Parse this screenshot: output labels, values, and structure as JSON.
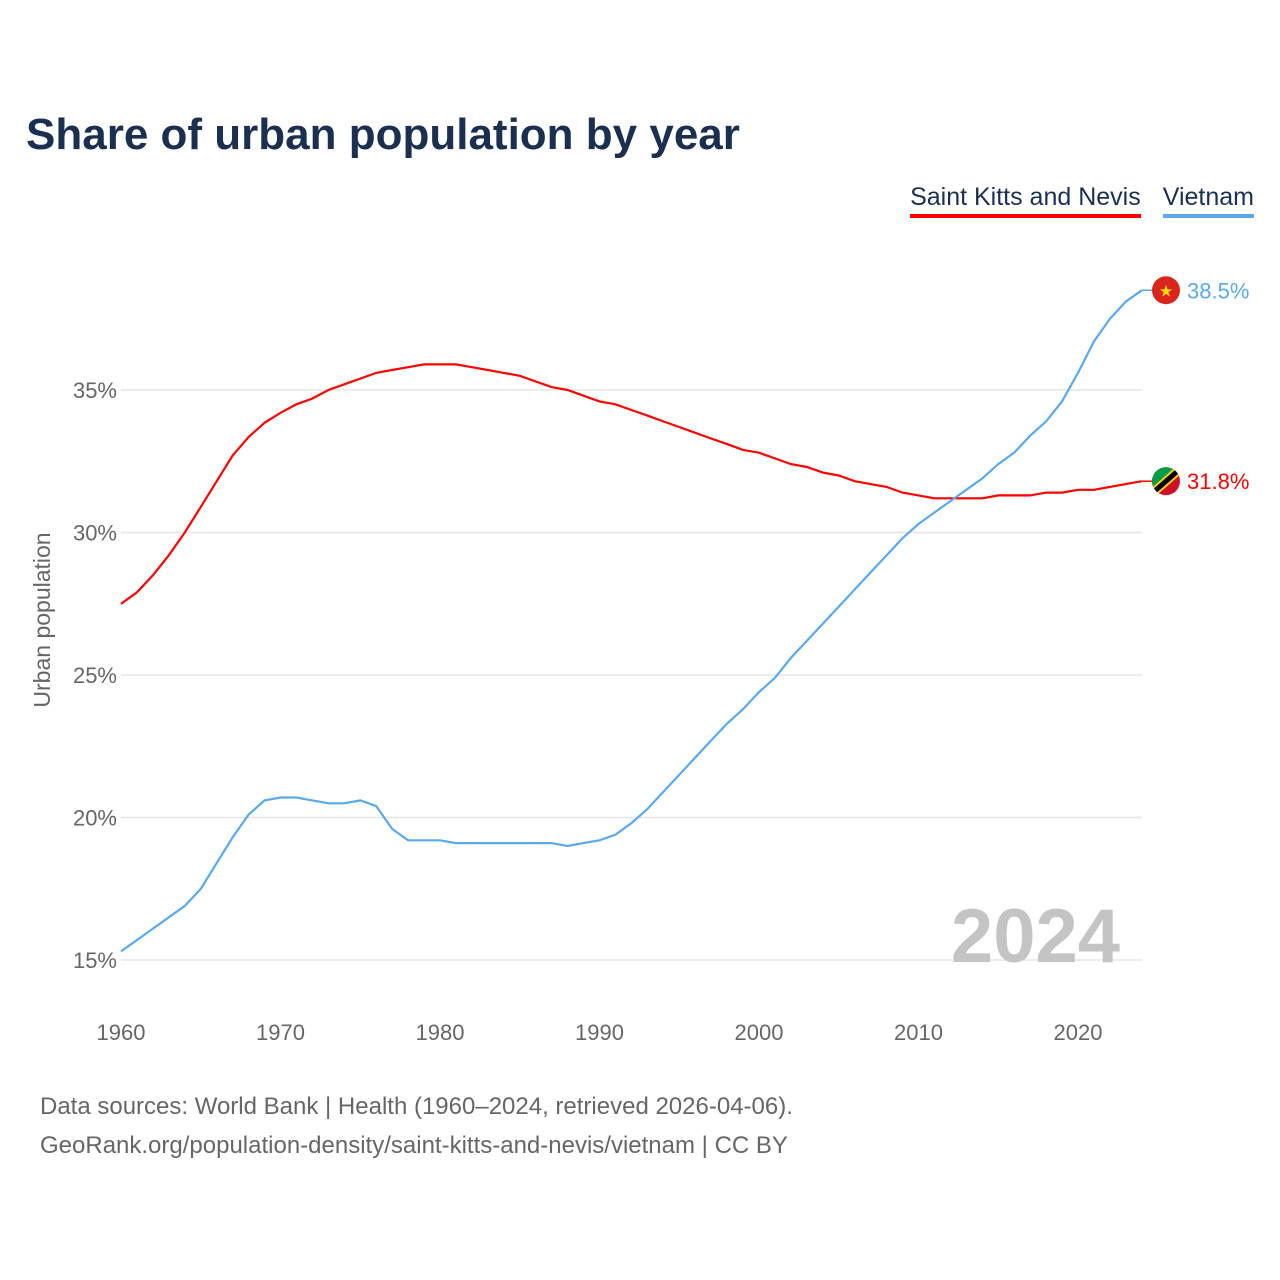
{
  "chart_data": {
    "type": "line",
    "title": "Share of urban population by year",
    "xlabel": "",
    "ylabel": "Urban population",
    "xlim": [
      1960,
      2024
    ],
    "ylim": [
      15,
      38.5
    ],
    "x_ticks": [
      "1960",
      "1970",
      "1980",
      "1990",
      "2000",
      "2010",
      "2020"
    ],
    "y_ticks": [
      "15%",
      "20%",
      "25%",
      "30%",
      "35%"
    ],
    "y_tick_values": [
      15,
      20,
      25,
      30,
      35
    ],
    "grid": true,
    "legend_position": "top-right",
    "year_watermark": "2024",
    "x": [
      1960,
      1961,
      1962,
      1963,
      1964,
      1965,
      1966,
      1967,
      1968,
      1969,
      1970,
      1971,
      1972,
      1973,
      1974,
      1975,
      1976,
      1977,
      1978,
      1979,
      1980,
      1981,
      1982,
      1983,
      1984,
      1985,
      1986,
      1987,
      1988,
      1989,
      1990,
      1991,
      1992,
      1993,
      1994,
      1995,
      1996,
      1997,
      1998,
      1999,
      2000,
      2001,
      2002,
      2003,
      2004,
      2005,
      2006,
      2007,
      2008,
      2009,
      2010,
      2011,
      2012,
      2013,
      2014,
      2015,
      2016,
      2017,
      2018,
      2019,
      2020,
      2021,
      2022,
      2023,
      2024
    ],
    "series": [
      {
        "name": "Saint Kitts and Nevis",
        "color": "#ff0000",
        "end_label": "31.8%",
        "values": [
          27.5,
          27.9,
          28.5,
          29.2,
          30.0,
          30.9,
          31.8,
          32.7,
          33.35,
          33.85,
          34.2,
          34.5,
          34.7,
          35.0,
          35.2,
          35.4,
          35.6,
          35.7,
          35.8,
          35.9,
          35.9,
          35.9,
          35.8,
          35.7,
          35.6,
          35.5,
          35.3,
          35.1,
          35.0,
          34.8,
          34.6,
          34.5,
          34.3,
          34.1,
          33.9,
          33.7,
          33.5,
          33.3,
          33.1,
          32.9,
          32.8,
          32.6,
          32.4,
          32.3,
          32.1,
          32.0,
          31.8,
          31.7,
          31.6,
          31.4,
          31.3,
          31.2,
          31.2,
          31.2,
          31.2,
          31.3,
          31.3,
          31.3,
          31.4,
          31.4,
          31.5,
          31.5,
          31.6,
          31.7,
          31.8
        ]
      },
      {
        "name": "Vietnam",
        "color": "#5ba8ee",
        "end_label": "38.5%",
        "values": [
          15.3,
          15.7,
          16.1,
          16.5,
          16.9,
          17.5,
          18.4,
          19.3,
          20.1,
          20.6,
          20.7,
          20.7,
          20.6,
          20.5,
          20.5,
          20.6,
          20.4,
          19.6,
          19.2,
          19.2,
          19.2,
          19.1,
          19.1,
          19.1,
          19.1,
          19.1,
          19.1,
          19.1,
          19.0,
          19.1,
          19.2,
          19.4,
          19.8,
          20.3,
          20.9,
          21.5,
          22.1,
          22.7,
          23.3,
          23.8,
          24.4,
          24.9,
          25.6,
          26.2,
          26.8,
          27.4,
          28.0,
          28.6,
          29.2,
          29.8,
          30.3,
          30.7,
          31.1,
          31.5,
          31.9,
          32.4,
          32.8,
          33.4,
          33.9,
          34.6,
          35.6,
          36.7,
          37.5,
          38.1,
          38.5
        ]
      }
    ]
  },
  "footer": {
    "line1": "Data sources: World Bank | Health (1960–2024, retrieved 2026-04-06).",
    "line2": "GeoRank.org/population-density/saint-kitts-and-nevis/vietnam | CC BY"
  }
}
